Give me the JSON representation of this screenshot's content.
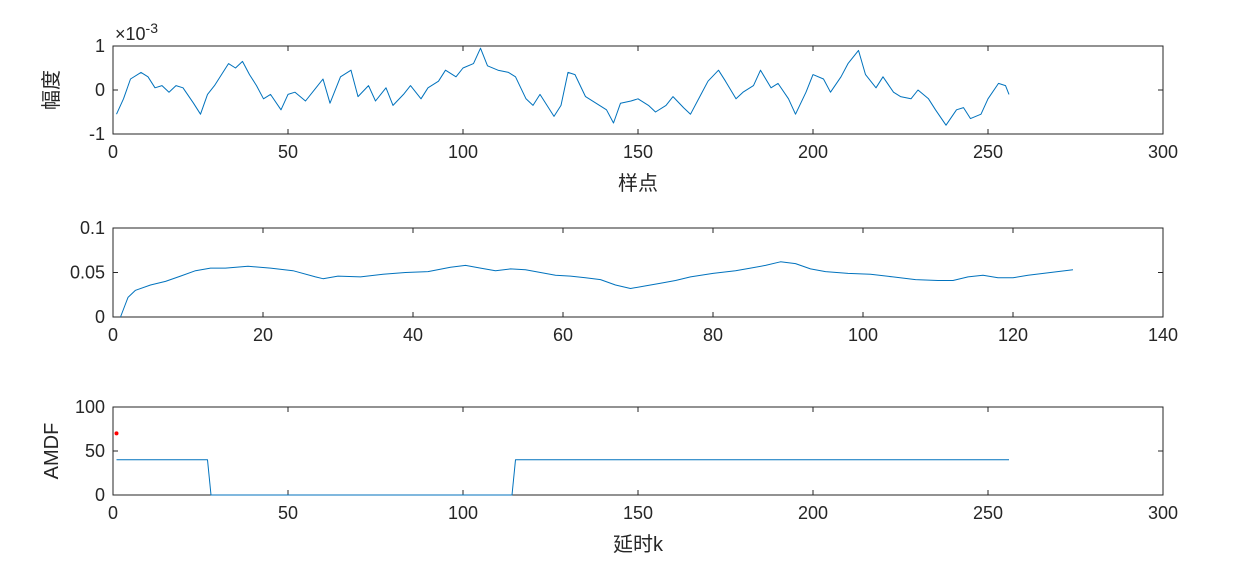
{
  "chart_data": [
    {
      "type": "line",
      "title": "",
      "xlabel": "样点",
      "ylabel": "幅度",
      "exponent_label": "×10",
      "exponent_power": "-3",
      "xlim": [
        0,
        300
      ],
      "ylim": [
        -1,
        1
      ],
      "xticks": [
        0,
        50,
        100,
        150,
        200,
        250,
        300
      ],
      "yticks": [
        -1,
        0,
        1
      ],
      "xtick_labels": [
        "0",
        "50",
        "100",
        "150",
        "200",
        "250",
        "300"
      ],
      "ytick_labels": [
        "-1",
        "0",
        "1"
      ],
      "series": [
        {
          "color": "#0072bd",
          "x": [
            1,
            3,
            5,
            8,
            10,
            12,
            14,
            16,
            18,
            20,
            23,
            25,
            27,
            29,
            31,
            33,
            35,
            37,
            39,
            41,
            43,
            45,
            48,
            50,
            52,
            55,
            58,
            60,
            62,
            65,
            68,
            70,
            73,
            75,
            78,
            80,
            83,
            85,
            88,
            90,
            93,
            95,
            98,
            100,
            103,
            105,
            107,
            110,
            113,
            115,
            118,
            120,
            122,
            124,
            126,
            128,
            130,
            132,
            135,
            138,
            141,
            143,
            145,
            148,
            150,
            153,
            155,
            158,
            160,
            163,
            165,
            168,
            170,
            173,
            175,
            178,
            180,
            183,
            185,
            188,
            190,
            193,
            195,
            198,
            200,
            203,
            205,
            208,
            210,
            213,
            215,
            218,
            220,
            223,
            225,
            228,
            230,
            233,
            235,
            238,
            241,
            243,
            245,
            248,
            250,
            253,
            255,
            256
          ],
          "y": [
            -0.55,
            -0.2,
            0.25,
            0.4,
            0.3,
            0.05,
            0.1,
            -0.05,
            0.1,
            0.05,
            -0.3,
            -0.55,
            -0.1,
            0.1,
            0.35,
            0.6,
            0.5,
            0.65,
            0.35,
            0.1,
            -0.2,
            -0.1,
            -0.45,
            -0.1,
            -0.05,
            -0.25,
            0.05,
            0.25,
            -0.3,
            0.3,
            0.45,
            -0.15,
            0.1,
            -0.25,
            0.05,
            -0.35,
            -0.1,
            0.1,
            -0.2,
            0.05,
            0.2,
            0.45,
            0.3,
            0.5,
            0.6,
            0.95,
            0.55,
            0.45,
            0.4,
            0.3,
            -0.2,
            -0.35,
            -0.1,
            -0.35,
            -0.6,
            -0.35,
            0.4,
            0.35,
            -0.15,
            -0.3,
            -0.45,
            -0.75,
            -0.3,
            -0.25,
            -0.2,
            -0.35,
            -0.5,
            -0.35,
            -0.15,
            -0.4,
            -0.55,
            -0.1,
            0.2,
            0.45,
            0.2,
            -0.2,
            -0.05,
            0.1,
            0.45,
            0.05,
            0.15,
            -0.2,
            -0.55,
            -0.05,
            0.35,
            0.25,
            -0.05,
            0.3,
            0.6,
            0.9,
            0.35,
            0.05,
            0.3,
            -0.05,
            -0.15,
            -0.2,
            0.0,
            -0.2,
            -0.45,
            -0.8,
            -0.45,
            -0.4,
            -0.65,
            -0.55,
            -0.2,
            0.15,
            0.1,
            -0.1
          ]
        }
      ]
    },
    {
      "type": "line",
      "title": "",
      "xlabel": "",
      "ylabel": "",
      "xlim": [
        0,
        140
      ],
      "ylim": [
        0,
        0.1
      ],
      "xticks": [
        0,
        20,
        40,
        60,
        80,
        100,
        120,
        140
      ],
      "yticks": [
        0,
        0.05,
        0.1
      ],
      "xtick_labels": [
        "0",
        "20",
        "40",
        "60",
        "80",
        "100",
        "120",
        "140"
      ],
      "ytick_labels": [
        "0",
        "0.05",
        "0.1"
      ],
      "series": [
        {
          "color": "#0072bd",
          "x": [
            1,
            2,
            3,
            5,
            7,
            9,
            11,
            13,
            15,
            18,
            21,
            24,
            27,
            28,
            30,
            33,
            36,
            39,
            42,
            45,
            47,
            49,
            51,
            53,
            55,
            57,
            59,
            61,
            63,
            65,
            67,
            69,
            71,
            73,
            75,
            77,
            80,
            83,
            85,
            87,
            89,
            91,
            93,
            95,
            98,
            101,
            104,
            107,
            110,
            112,
            114,
            116,
            118,
            120,
            122,
            125,
            128
          ],
          "y": [
            0,
            0.022,
            0.03,
            0.036,
            0.04,
            0.046,
            0.052,
            0.055,
            0.055,
            0.057,
            0.055,
            0.052,
            0.045,
            0.043,
            0.046,
            0.045,
            0.048,
            0.05,
            0.051,
            0.056,
            0.058,
            0.055,
            0.052,
            0.054,
            0.053,
            0.05,
            0.047,
            0.046,
            0.044,
            0.042,
            0.036,
            0.032,
            0.035,
            0.038,
            0.041,
            0.045,
            0.049,
            0.052,
            0.055,
            0.058,
            0.062,
            0.06,
            0.054,
            0.051,
            0.049,
            0.048,
            0.045,
            0.042,
            0.041,
            0.041,
            0.045,
            0.047,
            0.044,
            0.044,
            0.047,
            0.05,
            0.053
          ]
        }
      ]
    },
    {
      "type": "line",
      "title": "",
      "xlabel": "延时k",
      "ylabel": "AMDF",
      "xlim": [
        0,
        300
      ],
      "ylim": [
        0,
        100
      ],
      "xticks": [
        0,
        50,
        100,
        150,
        200,
        250,
        300
      ],
      "yticks": [
        0,
        50,
        100
      ],
      "xtick_labels": [
        "0",
        "50",
        "100",
        "150",
        "200",
        "250",
        "300"
      ],
      "ytick_labels": [
        "0",
        "50",
        "100"
      ],
      "series": [
        {
          "color": "#0072bd",
          "x": [
            1,
            27,
            28,
            114,
            115,
            256
          ],
          "y": [
            40,
            40,
            0,
            0,
            40,
            40
          ]
        }
      ],
      "markers": [
        {
          "color": "#ff0000",
          "x": 1,
          "y": 70
        }
      ]
    }
  ]
}
